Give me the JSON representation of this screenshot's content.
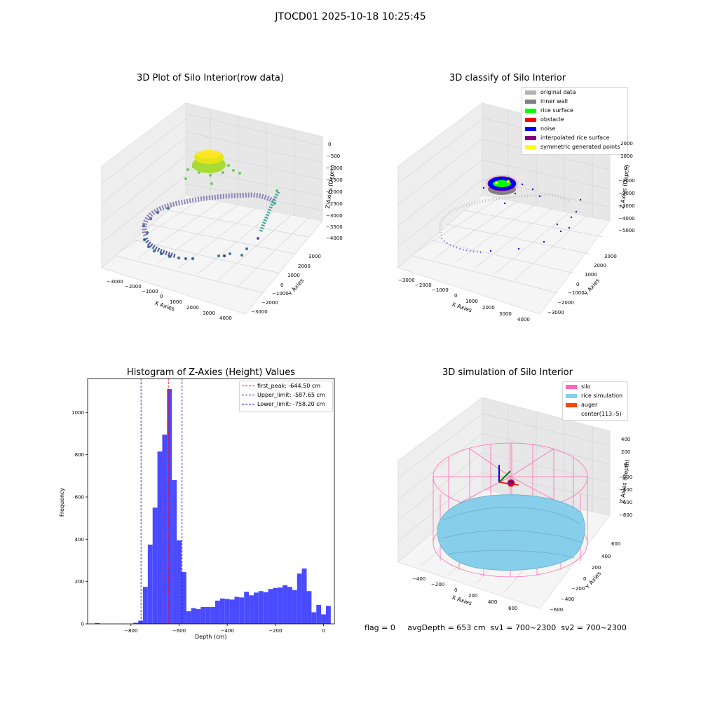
{
  "suptitle": "JTOCD01 2025-10-18 10:25:45",
  "footer": "flag = 0     avgDepth = 653 cm  sv1 = 700~2300  sv2 = 700~2300",
  "chart_data": [
    {
      "type": "scatter",
      "title": "3D Plot of Silo Interior(row data)",
      "xlabel": "X Axies",
      "ylabel": "Y Axies",
      "zlabel": "Z Axies (Depth)",
      "x_ticks": [
        "−3000",
        "−2000",
        "−1000",
        "0",
        "1000",
        "2000",
        "3000",
        "4000"
      ],
      "y_ticks": [
        "3000",
        "2000",
        "1000",
        "0",
        "−1000",
        "−2000",
        "−3000"
      ],
      "z_ticks": [
        "0",
        "−500",
        "−1000",
        "−1500",
        "−2000",
        "−2500",
        "−3000",
        "−3500",
        "−4000"
      ],
      "grid": true
    },
    {
      "type": "scatter",
      "title": "3D classify of Silo Interior",
      "xlabel": "X Axies",
      "ylabel": "Y Axies",
      "zlabel": "Z Axies (Depth)",
      "x_ticks": [
        "−3000",
        "−2000",
        "−1000",
        "0",
        "1000",
        "2000",
        "3000",
        "4000"
      ],
      "y_ticks": [
        "3000",
        "2000",
        "1000",
        "0",
        "−1000",
        "−2000",
        "−3000"
      ],
      "z_ticks": [
        "2000",
        "1000",
        "0",
        "−1000",
        "−2000",
        "−3000",
        "−4000",
        "−5000"
      ],
      "legend": [
        {
          "label": "original data",
          "color": "#b3b3b3"
        },
        {
          "label": "inner wall",
          "color": "#808080"
        },
        {
          "label": "rice surface",
          "color": "#00ff00"
        },
        {
          "label": "obstacle",
          "color": "#ff0000"
        },
        {
          "label": "noise",
          "color": "#0000ff"
        },
        {
          "label": "interpolated rice surface",
          "color": "#800080"
        },
        {
          "label": "symmetric generated points",
          "color": "#ffff00"
        }
      ],
      "legend_position": "top-right",
      "grid": true
    },
    {
      "type": "bar",
      "title": "Histogram of Z-Axies (Height) Values",
      "xlabel": "Depth (cm)",
      "ylabel": "Frequency",
      "xlim": [
        -980,
        45
      ],
      "ylim": [
        0,
        1160
      ],
      "x_ticks": [
        -800,
        -600,
        -400,
        -200,
        0
      ],
      "x_tick_labels": [
        "−800",
        "−600",
        "−400",
        "−200",
        "0"
      ],
      "y_ticks": [
        0,
        200,
        400,
        600,
        800,
        1000
      ],
      "bin_width": 20,
      "bins": [
        {
          "x": -940,
          "count": 4
        },
        {
          "x": -780,
          "count": 5
        },
        {
          "x": -760,
          "count": 15
        },
        {
          "x": -740,
          "count": 175
        },
        {
          "x": -720,
          "count": 375
        },
        {
          "x": -700,
          "count": 550
        },
        {
          "x": -680,
          "count": 815
        },
        {
          "x": -660,
          "count": 895
        },
        {
          "x": -640,
          "count": 1110
        },
        {
          "x": -620,
          "count": 680
        },
        {
          "x": -600,
          "count": 395
        },
        {
          "x": -580,
          "count": 245
        },
        {
          "x": -560,
          "count": 60
        },
        {
          "x": -540,
          "count": 75
        },
        {
          "x": -520,
          "count": 70
        },
        {
          "x": -500,
          "count": 80
        },
        {
          "x": -480,
          "count": 80
        },
        {
          "x": -460,
          "count": 80
        },
        {
          "x": -440,
          "count": 110
        },
        {
          "x": -420,
          "count": 120
        },
        {
          "x": -400,
          "count": 118
        },
        {
          "x": -380,
          "count": 115
        },
        {
          "x": -360,
          "count": 128
        },
        {
          "x": -340,
          "count": 125
        },
        {
          "x": -320,
          "count": 152
        },
        {
          "x": -300,
          "count": 135
        },
        {
          "x": -280,
          "count": 148
        },
        {
          "x": -260,
          "count": 155
        },
        {
          "x": -240,
          "count": 150
        },
        {
          "x": -220,
          "count": 165
        },
        {
          "x": -200,
          "count": 170
        },
        {
          "x": -180,
          "count": 172
        },
        {
          "x": -160,
          "count": 183
        },
        {
          "x": -140,
          "count": 175
        },
        {
          "x": -120,
          "count": 160
        },
        {
          "x": -100,
          "count": 238
        },
        {
          "x": -80,
          "count": 262
        },
        {
          "x": -60,
          "count": 155
        },
        {
          "x": -40,
          "count": 55
        },
        {
          "x": -20,
          "count": 90
        },
        {
          "x": 0,
          "count": 45
        },
        {
          "x": 20,
          "count": 85
        }
      ],
      "bar_color": "#4a4aff",
      "vlines": [
        {
          "label": "first_peak: -644.50 cm",
          "x": -644.5,
          "color": "#ff0000"
        },
        {
          "label": "Upper_limit: -587.65 cm",
          "x": -587.65,
          "color": "#0000cc"
        },
        {
          "label": "Lower_limit: -758.20 cm",
          "x": -758.2,
          "color": "#0000cc"
        }
      ],
      "legend_position": "top-right"
    },
    {
      "type": "surface",
      "title": "3D simulation of Silo Interior",
      "xlabel": "X Axies",
      "ylabel": "Y Axies",
      "zlabel": "Z Axies (Depth)",
      "x_ticks": [
        "−400",
        "−200",
        "0",
        "200",
        "400",
        "600"
      ],
      "y_ticks": [
        "600",
        "400",
        "200",
        "0",
        "−200",
        "−400",
        "−600"
      ],
      "z_ticks": [
        "400",
        "200",
        "0",
        "−200",
        "−400",
        "−600",
        "−800"
      ],
      "legend": [
        {
          "label": "silo",
          "color": "#ff69b4"
        },
        {
          "label": "rice simulation",
          "color": "#87ceeb"
        },
        {
          "label": "auger",
          "color": "#ff4500"
        },
        {
          "label": "center(113,-5)",
          "color": ""
        }
      ],
      "legend_position": "top-right",
      "grid": true
    }
  ]
}
